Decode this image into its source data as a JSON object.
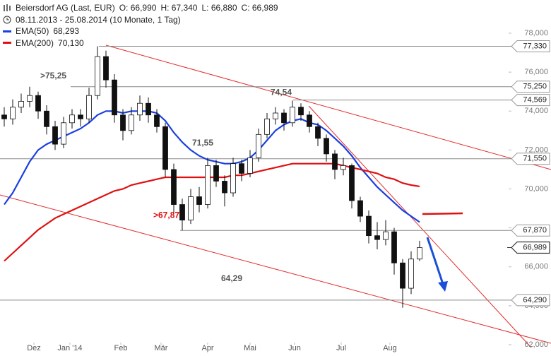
{
  "chart_data": {
    "type": "candlestick",
    "title": "Beiersdorf AG (Last, EUR)",
    "ohlc_summary": [
      "O: 66,990",
      "H: 67,340",
      "L: 66,880",
      "C: 66,989"
    ],
    "subtitle": "08.11.2013 - 25.08.2014 (10 Monate, 1 Tag)",
    "x": [
      0,
      4,
      8,
      12,
      16,
      20,
      24,
      28,
      32,
      36,
      40,
      44,
      48,
      52,
      56,
      60,
      64,
      68,
      72,
      76,
      80,
      84,
      88,
      92,
      96,
      100,
      104,
      108,
      112,
      116,
      120,
      124,
      128,
      132,
      136,
      140,
      144,
      148,
      152,
      156,
      160,
      164,
      168,
      172,
      176,
      180,
      184,
      188,
      192,
      196
    ],
    "open": [
      73.8,
      73.6,
      74.2,
      74.5,
      74.8,
      74.0,
      73.2,
      72.3,
      73.4,
      73.8,
      73.6,
      74.8,
      76.8,
      75.6,
      73.8,
      73.0,
      73.8,
      74.4,
      73.8,
      73.2,
      71.0,
      69.2,
      68.4,
      69.6,
      69.2,
      71.2,
      70.4,
      69.8,
      71.3,
      70.8,
      71.6,
      72.8,
      73.6,
      73.9,
      73.4,
      74.2,
      73.8,
      73.2,
      72.6,
      71.8,
      71.0,
      71.2,
      69.4,
      68.6,
      67.6,
      67.4,
      67.8,
      66.2,
      64.9,
      66.4
    ],
    "high": [
      74.2,
      74.6,
      74.9,
      75.25,
      75.0,
      74.3,
      73.5,
      73.7,
      74.1,
      74.1,
      75.2,
      77.33,
      77.1,
      75.9,
      74.1,
      74.2,
      74.8,
      74.7,
      74.1,
      73.4,
      71.3,
      69.5,
      70.0,
      70.1,
      71.6,
      71.5,
      70.7,
      71.6,
      71.5,
      72.0,
      73.1,
      73.9,
      74.2,
      74.1,
      74.54,
      74.4,
      74.0,
      73.4,
      72.8,
      72.0,
      71.6,
      71.3,
      69.6,
      68.9,
      68.3,
      68.4,
      68.0,
      66.4,
      66.8,
      67.34
    ],
    "low": [
      73.2,
      73.3,
      73.9,
      74.2,
      73.6,
      72.8,
      72.0,
      72.1,
      73.1,
      73.2,
      73.4,
      74.6,
      75.2,
      73.4,
      72.5,
      72.8,
      73.5,
      73.4,
      72.9,
      70.6,
      68.8,
      67.87,
      68.2,
      68.8,
      69.0,
      70.1,
      69.1,
      69.6,
      70.4,
      70.6,
      71.4,
      72.6,
      73.3,
      73.0,
      73.2,
      73.5,
      72.9,
      72.2,
      71.4,
      70.5,
      70.7,
      69.0,
      68.3,
      67.2,
      66.9,
      67.1,
      65.6,
      63.9,
      64.6,
      66.3
    ],
    "close": [
      73.6,
      74.2,
      74.5,
      74.8,
      74.0,
      73.2,
      72.3,
      73.4,
      73.8,
      73.6,
      74.8,
      76.8,
      75.6,
      73.8,
      73.0,
      73.8,
      74.4,
      73.8,
      73.2,
      71.0,
      69.2,
      68.4,
      69.6,
      69.2,
      71.2,
      70.4,
      69.8,
      71.3,
      70.8,
      71.6,
      72.8,
      73.6,
      73.9,
      73.4,
      74.2,
      73.8,
      73.2,
      72.6,
      71.8,
      71.0,
      71.2,
      69.4,
      68.6,
      67.6,
      67.4,
      67.8,
      66.2,
      64.9,
      66.4,
      66.989
    ],
    "series": [
      {
        "name": "EMA(50)",
        "color": "#1a3fe0",
        "value_label": "68,293",
        "values": [
          69.2,
          69.8,
          70.6,
          71.4,
          72.0,
          72.3,
          72.5,
          72.7,
          72.9,
          73.1,
          73.4,
          73.8,
          74.0,
          74.0,
          73.9,
          74.0,
          74.0,
          74.0,
          73.9,
          73.5,
          72.9,
          72.4,
          72.0,
          71.7,
          71.5,
          71.4,
          71.3,
          71.3,
          71.4,
          71.6,
          72.0,
          72.5,
          73.0,
          73.3,
          73.5,
          73.6,
          73.4,
          73.3,
          73.0,
          72.6,
          72.2,
          71.7,
          71.1,
          70.6,
          70.1,
          69.7,
          69.3,
          68.9,
          68.6,
          68.293
        ]
      },
      {
        "name": "EMA(200)",
        "color": "#e01010",
        "value_label": "70,130",
        "values": [
          66.3,
          66.7,
          67.1,
          67.5,
          67.9,
          68.2,
          68.5,
          68.7,
          68.9,
          69.1,
          69.3,
          69.5,
          69.7,
          69.9,
          70.0,
          70.2,
          70.3,
          70.4,
          70.5,
          70.6,
          70.6,
          70.6,
          70.6,
          70.6,
          70.6,
          70.6,
          70.6,
          70.7,
          70.7,
          70.8,
          70.9,
          71.0,
          71.1,
          71.2,
          71.3,
          71.3,
          71.3,
          71.3,
          71.3,
          71.3,
          71.2,
          71.1,
          71.0,
          70.9,
          70.8,
          70.6,
          70.5,
          70.3,
          70.2,
          70.13
        ]
      }
    ],
    "xlim": [
      -2,
      238
    ],
    "xticks": [
      {
        "value": 14,
        "label": "Dez"
      },
      {
        "value": 31,
        "label": "Jan '14"
      },
      {
        "value": 55,
        "label": "Feb"
      },
      {
        "value": 74,
        "label": "Mär"
      },
      {
        "value": 96,
        "label": "Apr"
      },
      {
        "value": 116,
        "label": "Mai"
      },
      {
        "value": 137,
        "label": "Jun"
      },
      {
        "value": 159,
        "label": "Jul"
      },
      {
        "value": 182,
        "label": "Aug"
      }
    ],
    "ylim": [
      62,
      78
    ],
    "yticks": [
      {
        "value": 62,
        "label": "62,000"
      },
      {
        "value": 64,
        "label": "64,000"
      },
      {
        "value": 66,
        "label": "66,000"
      },
      {
        "value": 68,
        "label": "68,000"
      },
      {
        "value": 70,
        "label": "70,000"
      },
      {
        "value": 72,
        "label": "72,000"
      },
      {
        "value": 74,
        "label": "74,000"
      },
      {
        "value": 76,
        "label": "76,000"
      },
      {
        "value": 78,
        "label": "78,000"
      }
    ],
    "levels": [
      {
        "value": 77.33,
        "label": "77,330"
      },
      {
        "value": 75.25,
        "label": "75,250"
      },
      {
        "value": 74.569,
        "label": "74,569"
      },
      {
        "value": 71.55,
        "label": "71,550"
      },
      {
        "value": 67.87,
        "label": "67,870"
      },
      {
        "value": 64.29,
        "label": "64,290"
      }
    ],
    "last_price": {
      "value": 66.989,
      "label": "66,989"
    },
    "annotations": [
      {
        "value": 75.25,
        "label": ">75,25"
      },
      {
        "value": 74.54,
        "label": "74,54"
      },
      {
        "value": 71.55,
        "label": "71,55"
      },
      {
        "value": 67.87,
        "label": ">67,87",
        "color": "#e01010"
      },
      {
        "value": 64.29,
        "label": "64,29"
      }
    ]
  }
}
